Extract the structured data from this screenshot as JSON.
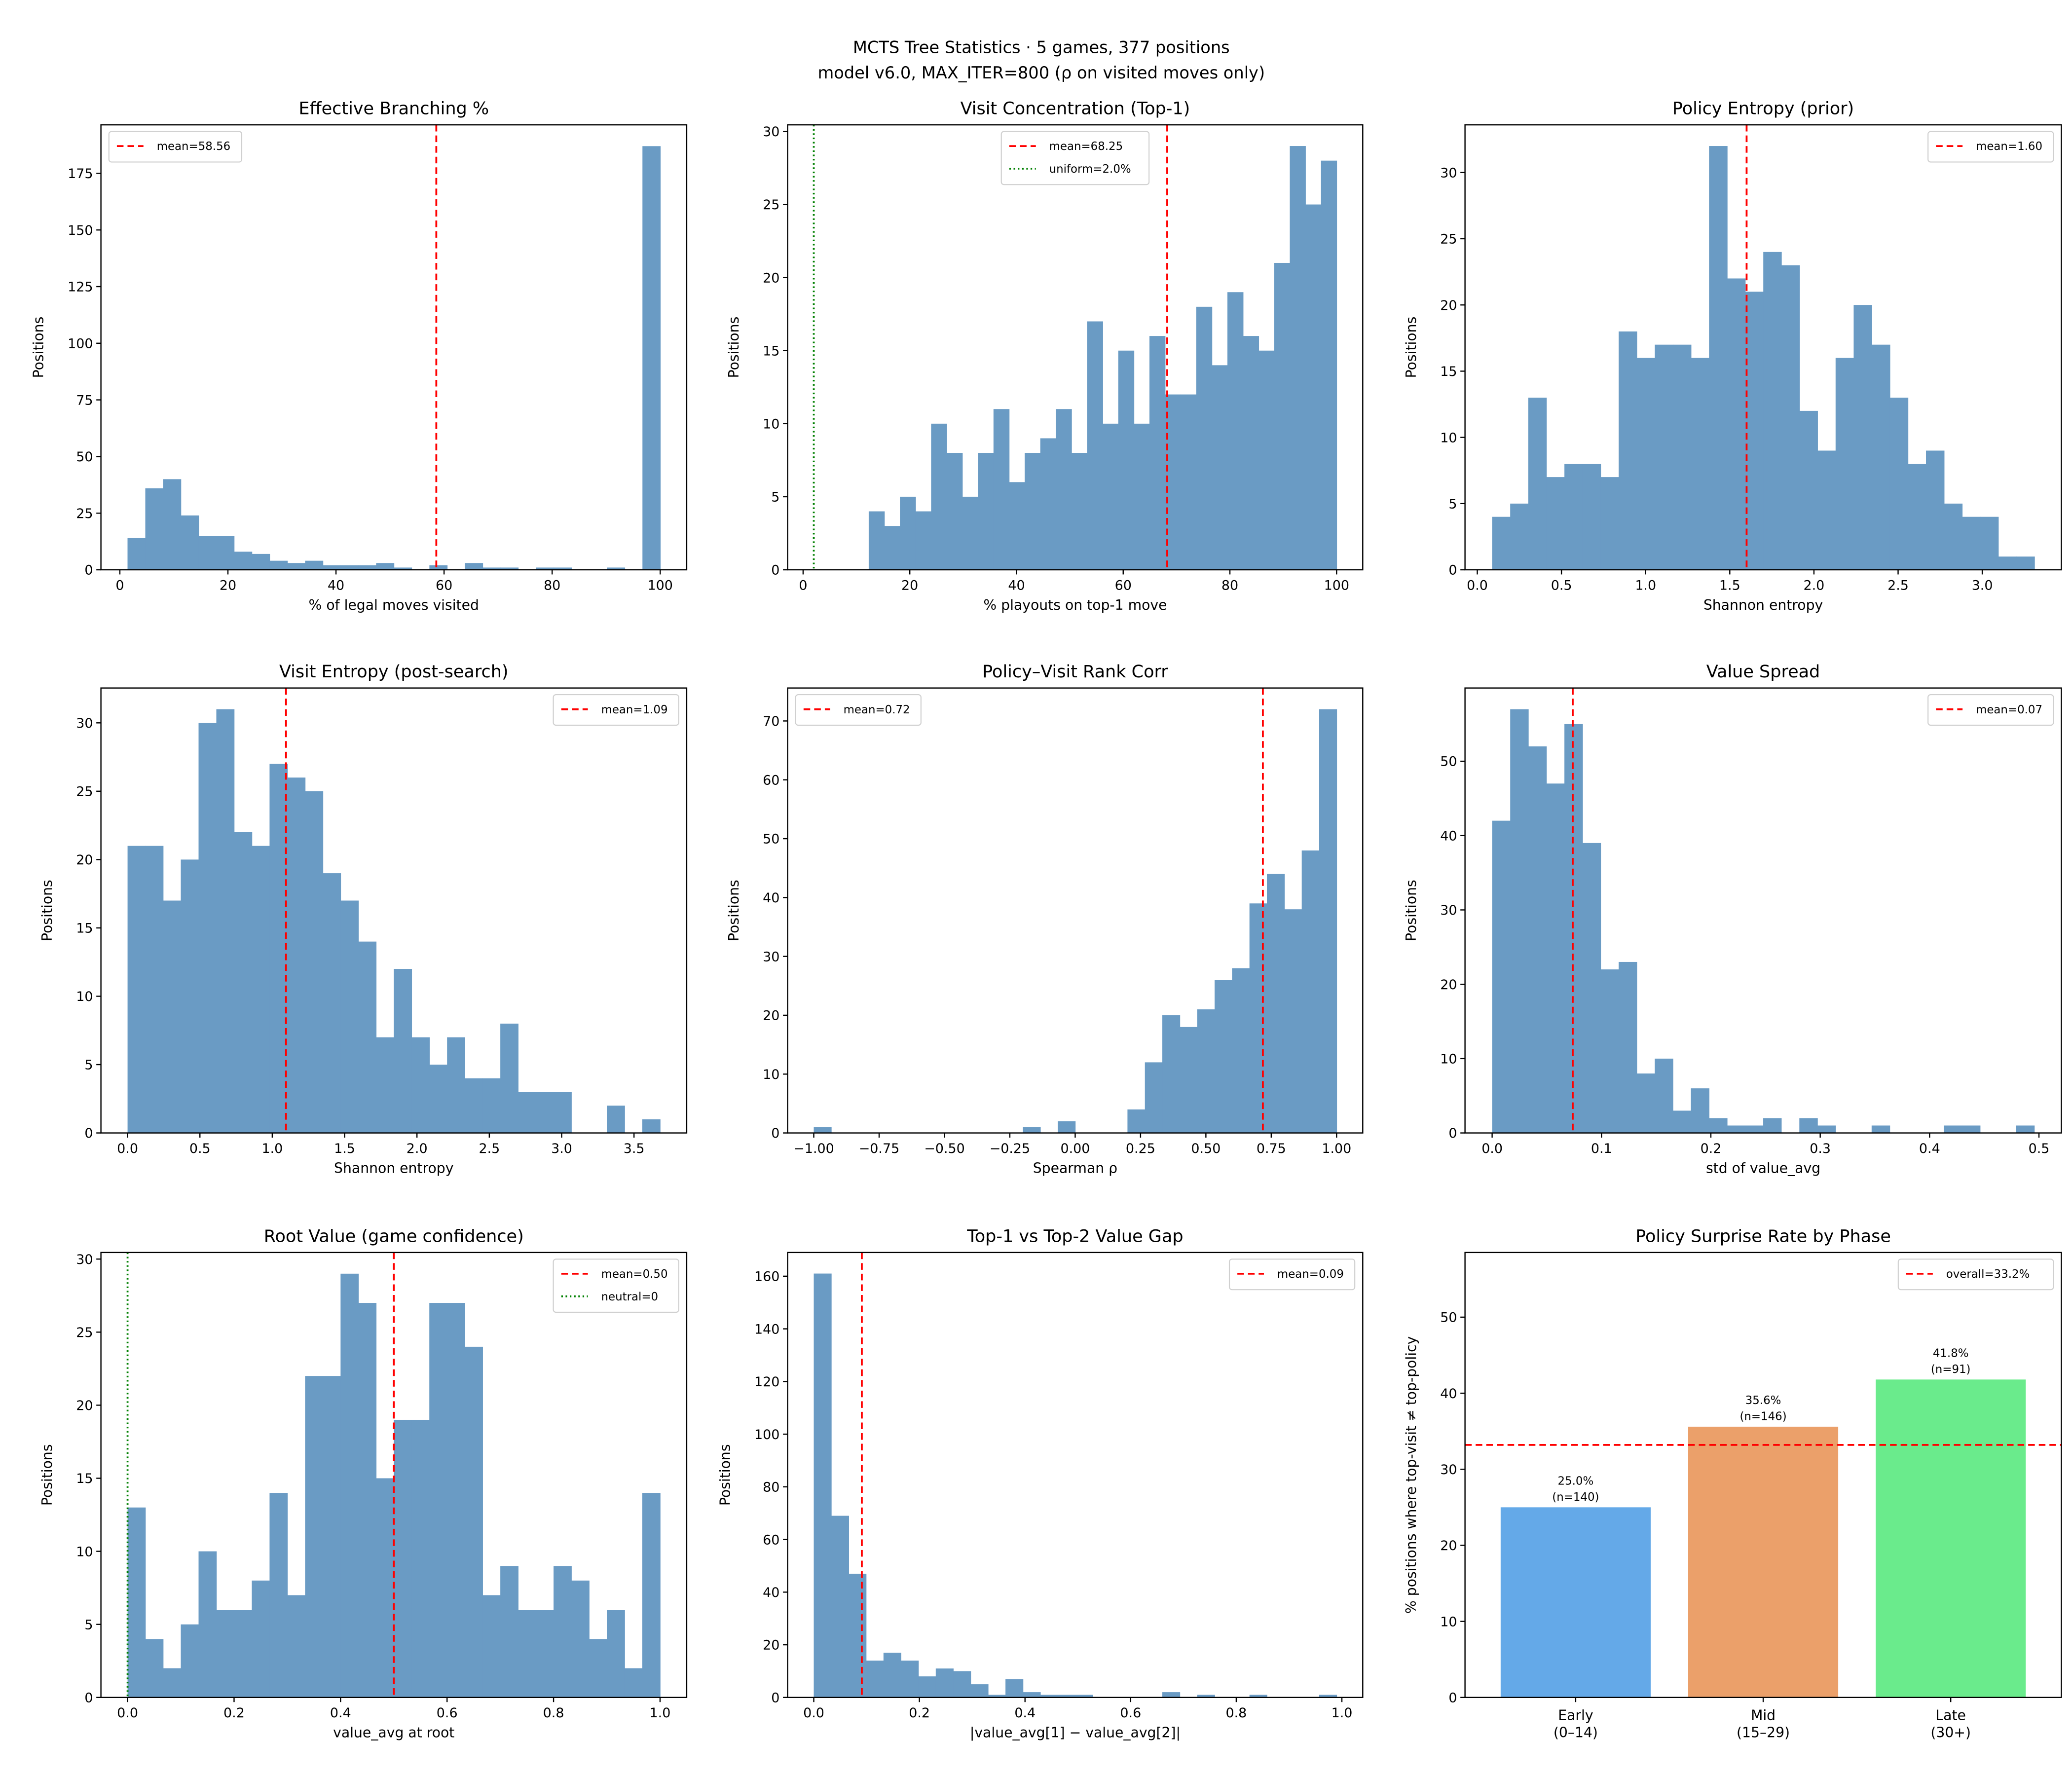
{
  "figure": {
    "suptitle_line1": "MCTS Tree Statistics  ·  5 games, 377 positions",
    "suptitle_line2": "model v6.0,  MAX_ITER=800  (ρ on visited moves only)",
    "bar_color": "#6a9bc4"
  },
  "chart_data": [
    {
      "type": "bar",
      "histogram": true,
      "title": "Effective Branching %",
      "xlabel": "% of legal moves visited",
      "ylabel": "Positions",
      "bin_range": [
        1.42,
        100
      ],
      "counts": [
        14,
        36,
        40,
        24,
        15,
        15,
        8,
        7,
        4,
        3,
        4,
        2,
        2,
        2,
        3,
        1,
        0,
        2,
        0,
        3,
        1,
        1,
        0,
        1,
        1,
        0,
        0,
        1,
        0,
        187
      ],
      "xlim": [
        -3.5,
        104.9
      ],
      "ylim": [
        0,
        196.4
      ],
      "xticks": [
        0,
        20,
        40,
        60,
        80,
        100
      ],
      "xtick_labels": [
        "0",
        "20",
        "40",
        "60",
        "80",
        "100"
      ],
      "yticks": [
        0,
        25,
        50,
        75,
        100,
        125,
        150,
        175
      ],
      "ytick_labels": [
        "0",
        "25",
        "50",
        "75",
        "100",
        "125",
        "150",
        "175"
      ],
      "ref_lines": [
        {
          "orientation": "vertical",
          "value": 58.56,
          "style": "dashed",
          "color": "#ff0000",
          "label": "mean=58.56"
        }
      ],
      "legend": "upper-left",
      "grid": false
    },
    {
      "type": "bar",
      "histogram": true,
      "title": "Visit Concentration (Top-1)",
      "xlabel": "% playouts on top-1 move",
      "ylabel": "Positions",
      "bin_range": [
        12.3,
        100
      ],
      "counts": [
        4,
        3,
        5,
        4,
        10,
        8,
        5,
        8,
        11,
        6,
        8,
        9,
        11,
        8,
        17,
        10,
        15,
        10,
        16,
        12,
        12,
        18,
        14,
        19,
        16,
        15,
        21,
        29,
        25,
        28
      ],
      "xlim": [
        -2.9,
        104.9
      ],
      "ylim": [
        0,
        30.45
      ],
      "xticks": [
        0,
        20,
        40,
        60,
        80,
        100
      ],
      "xtick_labels": [
        "0",
        "20",
        "40",
        "60",
        "80",
        "100"
      ],
      "yticks": [
        0,
        5,
        10,
        15,
        20,
        25,
        30
      ],
      "ytick_labels": [
        "0",
        "5",
        "10",
        "15",
        "20",
        "25",
        "30"
      ],
      "ref_lines": [
        {
          "orientation": "vertical",
          "value": 68.25,
          "style": "dashed",
          "color": "#ff0000",
          "label": "mean=68.25"
        },
        {
          "orientation": "vertical",
          "value": 2.0,
          "style": "dotted",
          "color": "#008000",
          "label": "uniform=2.0%"
        }
      ],
      "legend": "upper-center",
      "grid": false
    },
    {
      "type": "bar",
      "histogram": true,
      "title": "Policy Entropy (prior)",
      "xlabel": "Shannon entropy",
      "ylabel": "Positions",
      "bin_range": [
        0.088,
        3.31
      ],
      "counts": [
        4,
        5,
        13,
        7,
        8,
        8,
        7,
        18,
        16,
        17,
        17,
        16,
        32,
        22,
        21,
        24,
        23,
        12,
        9,
        16,
        20,
        17,
        13,
        8,
        9,
        5,
        4,
        4,
        1,
        1
      ],
      "xlim": [
        -0.073,
        3.47
      ],
      "ylim": [
        0,
        33.6
      ],
      "xticks": [
        0,
        0.5,
        1,
        1.5,
        2,
        2.5,
        3
      ],
      "xtick_labels": [
        "0.0",
        "0.5",
        "1.0",
        "1.5",
        "2.0",
        "2.5",
        "3.0"
      ],
      "yticks": [
        0,
        5,
        10,
        15,
        20,
        25,
        30
      ],
      "ytick_labels": [
        "0",
        "5",
        "10",
        "15",
        "20",
        "25",
        "30"
      ],
      "ref_lines": [
        {
          "orientation": "vertical",
          "value": 1.6,
          "style": "dashed",
          "color": "#ff0000",
          "label": "mean=1.60"
        }
      ],
      "legend": "upper-right",
      "grid": false
    },
    {
      "type": "bar",
      "histogram": true,
      "title": "Visit Entropy (post-search)",
      "xlabel": "Shannon entropy",
      "ylabel": "Positions",
      "bin_range": [
        0,
        3.68
      ],
      "counts": [
        21,
        21,
        17,
        20,
        30,
        31,
        22,
        21,
        27,
        26,
        25,
        19,
        17,
        14,
        7,
        12,
        7,
        5,
        7,
        4,
        4,
        8,
        3,
        3,
        3,
        0,
        0,
        2,
        0,
        1
      ],
      "xlim": [
        -0.184,
        3.864
      ],
      "ylim": [
        0,
        32.55
      ],
      "xticks": [
        0,
        0.5,
        1,
        1.5,
        2,
        2.5,
        3,
        3.5
      ],
      "xtick_labels": [
        "0.0",
        "0.5",
        "1.0",
        "1.5",
        "2.0",
        "2.5",
        "3.0",
        "3.5"
      ],
      "yticks": [
        0,
        5,
        10,
        15,
        20,
        25,
        30
      ],
      "ytick_labels": [
        "0",
        "5",
        "10",
        "15",
        "20",
        "25",
        "30"
      ],
      "ref_lines": [
        {
          "orientation": "vertical",
          "value": 1.095,
          "style": "dashed",
          "color": "#ff0000",
          "label": "mean=1.09"
        }
      ],
      "legend": "upper-right",
      "grid": false
    },
    {
      "type": "bar",
      "histogram": true,
      "title": "Policy–Visit Rank Corr",
      "xlabel": "Spearman ρ",
      "ylabel": "Positions",
      "bin_range": [
        -1,
        1
      ],
      "counts": [
        1,
        0,
        0,
        0,
        0,
        0,
        0,
        0,
        0,
        0,
        0,
        0,
        1,
        0,
        2,
        0,
        0,
        0,
        4,
        12,
        20,
        18,
        21,
        26,
        28,
        39,
        44,
        38,
        48,
        72
      ],
      "xlim": [
        -1.1,
        1.1
      ],
      "ylim": [
        0,
        75.6
      ],
      "xticks": [
        -1,
        -0.75,
        -0.5,
        -0.25,
        0,
        0.25,
        0.5,
        0.75,
        1
      ],
      "xtick_labels": [
        "−1.00",
        "−0.75",
        "−0.50",
        "−0.25",
        "0.00",
        "0.25",
        "0.50",
        "0.75",
        "1.00"
      ],
      "yticks": [
        0,
        10,
        20,
        30,
        40,
        50,
        60,
        70
      ],
      "ytick_labels": [
        "0",
        "10",
        "20",
        "30",
        "40",
        "50",
        "60",
        "70"
      ],
      "ref_lines": [
        {
          "orientation": "vertical",
          "value": 0.718,
          "style": "dashed",
          "color": "#ff0000",
          "label": "mean=0.72"
        }
      ],
      "legend": "upper-left",
      "grid": false
    },
    {
      "type": "bar",
      "histogram": true,
      "title": "Value Spread",
      "xlabel": "std of value_avg",
      "ylabel": "Positions",
      "bin_range": [
        0,
        0.4957
      ],
      "counts": [
        42,
        57,
        52,
        47,
        55,
        39,
        22,
        23,
        8,
        10,
        3,
        6,
        2,
        1,
        1,
        2,
        0,
        2,
        1,
        0,
        0,
        1,
        0,
        0,
        0,
        1,
        1,
        0,
        0,
        1
      ],
      "xlim": [
        -0.0248,
        0.5205
      ],
      "ylim": [
        0,
        59.85
      ],
      "xticks": [
        0,
        0.1,
        0.2,
        0.3,
        0.4,
        0.5
      ],
      "xtick_labels": [
        "0.0",
        "0.1",
        "0.2",
        "0.3",
        "0.4",
        "0.5"
      ],
      "yticks": [
        0,
        10,
        20,
        30,
        40,
        50
      ],
      "ytick_labels": [
        "0",
        "10",
        "20",
        "30",
        "40",
        "50"
      ],
      "ref_lines": [
        {
          "orientation": "vertical",
          "value": 0.0737,
          "style": "dashed",
          "color": "#ff0000",
          "label": "mean=0.07"
        }
      ],
      "legend": "upper-right",
      "grid": false
    },
    {
      "type": "bar",
      "histogram": true,
      "title": "Root Value (game confidence)",
      "xlabel": "value_avg at root",
      "ylabel": "Positions",
      "bin_range": [
        0,
        1
      ],
      "counts": [
        13,
        4,
        2,
        5,
        10,
        6,
        6,
        8,
        14,
        7,
        22,
        22,
        29,
        27,
        15,
        19,
        19,
        27,
        27,
        24,
        7,
        9,
        6,
        6,
        9,
        8,
        4,
        6,
        2,
        14
      ],
      "xlim": [
        -0.05,
        1.05
      ],
      "ylim": [
        0,
        30.45
      ],
      "xticks": [
        0,
        0.2,
        0.4,
        0.6,
        0.8,
        1
      ],
      "xtick_labels": [
        "0.0",
        "0.2",
        "0.4",
        "0.6",
        "0.8",
        "1.0"
      ],
      "yticks": [
        0,
        5,
        10,
        15,
        20,
        25,
        30
      ],
      "ytick_labels": [
        "0",
        "5",
        "10",
        "15",
        "20",
        "25",
        "30"
      ],
      "ref_lines": [
        {
          "orientation": "vertical",
          "value": 0.5,
          "style": "dashed",
          "color": "#ff0000",
          "label": "mean=0.50"
        },
        {
          "orientation": "vertical",
          "value": 0,
          "style": "dotted",
          "color": "#008000",
          "label": "neutral=0"
        }
      ],
      "legend": "upper-right",
      "grid": false
    },
    {
      "type": "bar",
      "histogram": true,
      "title": "Top-1 vs Top-2 Value Gap",
      "xlabel": "|value_avg[1] − value_avg[2]|",
      "ylabel": "Positions",
      "bin_range": [
        0,
        0.99
      ],
      "counts": [
        161,
        69,
        47,
        14,
        17,
        14,
        8,
        11,
        10,
        5,
        1,
        7,
        2,
        1,
        1,
        1,
        0,
        0,
        0,
        0,
        2,
        0,
        1,
        0,
        0,
        1,
        0,
        0,
        0,
        1
      ],
      "xlim": [
        -0.0495,
        1.0395
      ],
      "ylim": [
        0,
        169
      ],
      "xticks": [
        0,
        0.2,
        0.4,
        0.6,
        0.8,
        1
      ],
      "xtick_labels": [
        "0.0",
        "0.2",
        "0.4",
        "0.6",
        "0.8",
        "1.0"
      ],
      "yticks": [
        0,
        20,
        40,
        60,
        80,
        100,
        120,
        140,
        160
      ],
      "ytick_labels": [
        "0",
        "20",
        "40",
        "60",
        "80",
        "100",
        "120",
        "140",
        "160"
      ],
      "ref_lines": [
        {
          "orientation": "vertical",
          "value": 0.091,
          "style": "dashed",
          "color": "#ff0000",
          "label": "mean=0.09"
        }
      ],
      "legend": "upper-right",
      "grid": false
    },
    {
      "type": "bar",
      "title": "Policy Surprise Rate by Phase",
      "xlabel": "",
      "ylabel": "% positions where top-visit ≠ top-policy",
      "categories": [
        "Early",
        "Mid",
        "Late"
      ],
      "category_ranges": [
        "(0–14)",
        "(15–29)",
        "(30+)"
      ],
      "values": [
        25.0,
        35.6,
        41.8
      ],
      "value_labels": [
        "25.0%",
        "35.6%",
        "41.8%"
      ],
      "n_labels": [
        "(n=140)",
        "(n=146)",
        "(n=91)"
      ],
      "colors": [
        "#64a9e8",
        "#eba06a",
        "#6aeb8c"
      ],
      "xlim": [
        -0.59,
        2.59
      ],
      "ylim": [
        0,
        58.5
      ],
      "yticks": [
        0,
        10,
        20,
        30,
        40,
        50
      ],
      "ytick_labels": [
        "0",
        "10",
        "20",
        "30",
        "40",
        "50"
      ],
      "ref_lines": [
        {
          "orientation": "horizontal",
          "value": 33.2,
          "style": "dashed",
          "color": "#ff0000",
          "label": "overall=33.2%"
        }
      ],
      "legend": "upper-right",
      "grid": false
    }
  ]
}
